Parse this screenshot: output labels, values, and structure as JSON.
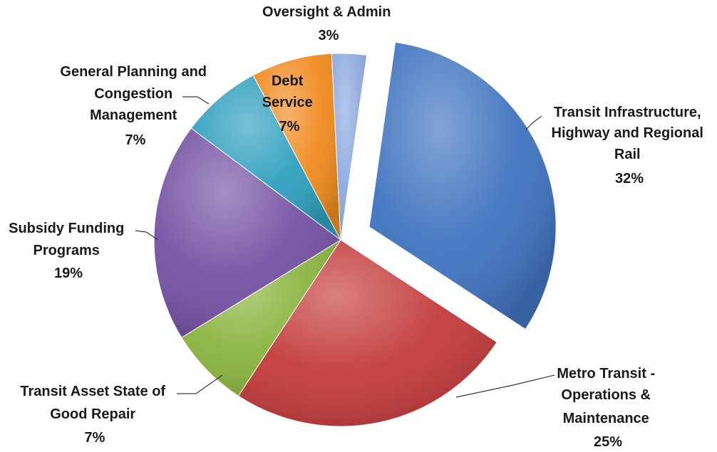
{
  "chart_data": {
    "type": "pie",
    "title": "",
    "exploded_slice": "Transit Infrastructure, Highway and Regional Rail",
    "slices": [
      {
        "key": "transit-infrastructure",
        "label_lines": [
          "Transit Infrastructure,",
          "Highway and Regional",
          "Rail"
        ],
        "percent_label": "32%",
        "value": 32,
        "color": "#3f73bf",
        "exploded": true
      },
      {
        "key": "metro-transit",
        "label_lines": [
          "Metro Transit -",
          "Operations &",
          "Maintenance"
        ],
        "percent_label": "25%",
        "value": 25,
        "color": "#c33b3b",
        "exploded": false
      },
      {
        "key": "asset-state-good-repair",
        "label_lines": [
          "Transit Asset State of",
          "Good Repair"
        ],
        "percent_label": "7%",
        "value": 7,
        "color": "#8ab43f",
        "exploded": false
      },
      {
        "key": "subsidy-funding",
        "label_lines": [
          "Subsidy Funding",
          "Programs"
        ],
        "percent_label": "19%",
        "value": 19,
        "color": "#7552a3",
        "exploded": false
      },
      {
        "key": "general-planning",
        "label_lines": [
          "General Planning and",
          "Congestion",
          "Management"
        ],
        "percent_label": "7%",
        "value": 7,
        "color": "#2e9fbd",
        "exploded": false
      },
      {
        "key": "debt-service",
        "label_lines": [
          "Debt",
          "Service"
        ],
        "percent_label": "7%",
        "value": 7,
        "color": "#f08a1f",
        "exploded": false
      },
      {
        "key": "oversight-admin",
        "label_lines": [
          "Oversight & Admin"
        ],
        "percent_label": "3%",
        "value": 3,
        "color": "#8eaadf",
        "exploded": false
      }
    ]
  }
}
